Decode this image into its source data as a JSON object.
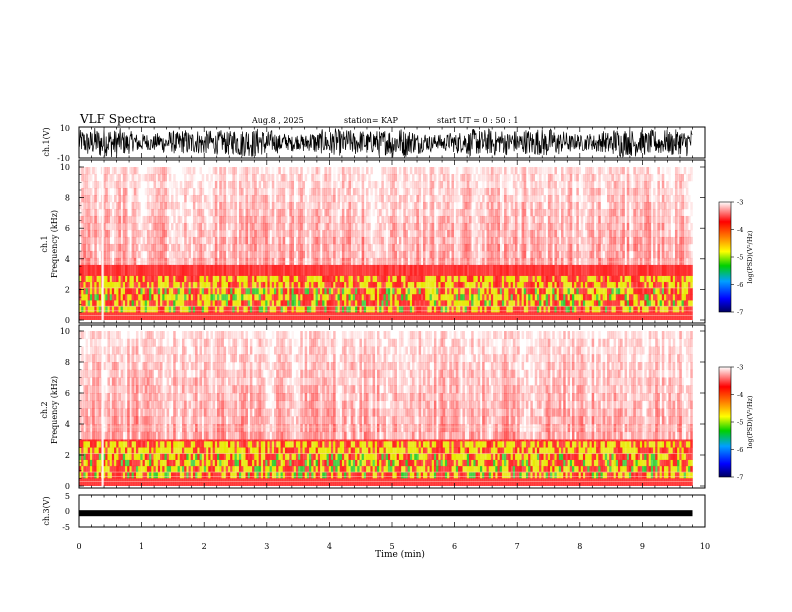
{
  "header": {
    "title": "VLF Spectra",
    "date": "Aug.8 , 2025",
    "station": "station= KAP",
    "start": "start UT = 0 : 50 : 1"
  },
  "chart_data": [
    {
      "type": "line",
      "name": "ch1-waveform",
      "ylabel": "ch.1(V)",
      "ylim": [
        -10,
        10
      ],
      "ytick_labels": [
        "10",
        "-10"
      ],
      "xlim": [
        0,
        10
      ],
      "data_extent_min": [
        0,
        9.8
      ],
      "note": "dense noisy waveform oscillating mostly between about -8 and +9 V"
    },
    {
      "type": "heatmap",
      "name": "ch1-spectrogram",
      "ylabel_line1": "ch.1",
      "ylabel_line2": "Frequency (kHz)",
      "ylim": [
        0,
        10
      ],
      "ytick_labels": [
        "0",
        "2",
        "4",
        "6",
        "8",
        "10"
      ],
      "xlim": [
        0,
        10
      ],
      "data_extent_min": [
        0,
        9.8
      ],
      "colorbar": {
        "label": "log(PSD)(V²/Hz)",
        "range": [
          -7,
          -3
        ],
        "tick_labels": [
          "-3",
          "-4",
          "-5",
          "-6",
          "-7"
        ]
      }
    },
    {
      "type": "heatmap",
      "name": "ch2-spectrogram",
      "ylabel_line1": "ch.2",
      "ylabel_line2": "Frequency (kHz)",
      "ylim": [
        0,
        10
      ],
      "ytick_labels": [
        "0",
        "2",
        "4",
        "6",
        "8",
        "10"
      ],
      "xlim": [
        0,
        10
      ],
      "data_extent_min": [
        0,
        9.8
      ],
      "colorbar": {
        "label": "log(PSD)(V²/Hz)",
        "range": [
          -7,
          -3
        ],
        "tick_labels": [
          "-3",
          "-4",
          "-5",
          "-6",
          "-7"
        ]
      }
    },
    {
      "type": "line",
      "name": "ch3-waveform",
      "ylabel": "ch.3(V)",
      "ylim": [
        -5,
        5
      ],
      "ytick_labels": [
        "5",
        "0",
        "-5"
      ],
      "xlim": [
        0,
        10
      ],
      "data_extent_min": [
        0,
        9.8
      ],
      "note": "thick nearly flat band around -0.7 V"
    }
  ],
  "xaxis": {
    "label": "Time (min)",
    "tick_labels": [
      "0",
      "1",
      "2",
      "3",
      "4",
      "5",
      "6",
      "7",
      "8",
      "9",
      "10"
    ]
  },
  "colors": {
    "spec_low": "#ff2020",
    "spec_mid": "#e8e800",
    "spec_lower": "#2ecc2e",
    "spec_bg": "#ffffff",
    "waveform": "#000000"
  }
}
